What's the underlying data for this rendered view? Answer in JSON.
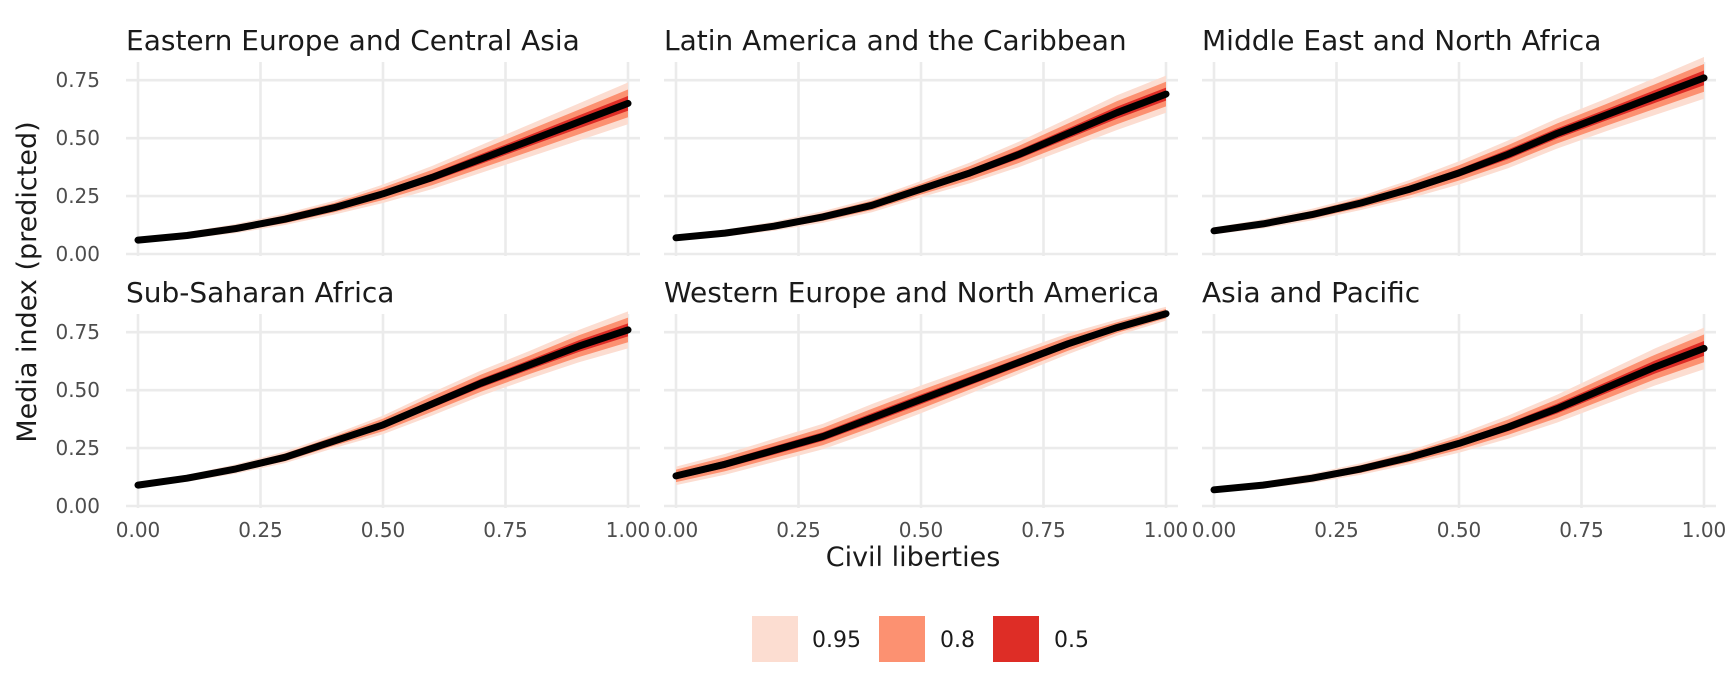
{
  "chart_data": {
    "type": "line",
    "xlabel": "Civil liberties",
    "ylabel": "Media index (predicted)",
    "xlim": [
      0,
      1
    ],
    "ylim": [
      0,
      0.82
    ],
    "x_ticks": [
      "0.00",
      "0.25",
      "0.50",
      "0.75",
      "1.00"
    ],
    "y_ticks": [
      "0.00",
      "0.25",
      "0.50",
      "0.75"
    ],
    "grid": true,
    "x": [
      0.0,
      0.1,
      0.2,
      0.3,
      0.4,
      0.5,
      0.6,
      0.7,
      0.8,
      0.9,
      1.0
    ],
    "interval_levels": [
      {
        "level": "0.95",
        "color": "#fcddd1"
      },
      {
        "level": "0.8",
        "color": "#fc9171"
      },
      {
        "level": "0.5",
        "color": "#de2d26"
      }
    ],
    "line_color": "#000000",
    "legend_position": "bottom",
    "panels": [
      {
        "title": "Eastern Europe and Central Asia",
        "median": [
          0.06,
          0.08,
          0.11,
          0.15,
          0.2,
          0.26,
          0.33,
          0.41,
          0.49,
          0.57,
          0.65
        ],
        "w95": [
          0.01,
          0.015,
          0.02,
          0.025,
          0.03,
          0.04,
          0.05,
          0.06,
          0.07,
          0.08,
          0.09
        ],
        "w80": [
          0.007,
          0.01,
          0.013,
          0.017,
          0.02,
          0.027,
          0.033,
          0.04,
          0.047,
          0.053,
          0.06
        ],
        "w50": [
          0.004,
          0.005,
          0.007,
          0.009,
          0.011,
          0.014,
          0.017,
          0.021,
          0.024,
          0.028,
          0.032
        ]
      },
      {
        "title": "Latin America and the Caribbean",
        "median": [
          0.07,
          0.09,
          0.12,
          0.16,
          0.21,
          0.28,
          0.35,
          0.43,
          0.52,
          0.61,
          0.69
        ],
        "w95": [
          0.01,
          0.015,
          0.02,
          0.025,
          0.03,
          0.035,
          0.045,
          0.055,
          0.065,
          0.075,
          0.08
        ],
        "w80": [
          0.007,
          0.01,
          0.013,
          0.017,
          0.02,
          0.023,
          0.03,
          0.037,
          0.043,
          0.05,
          0.053
        ],
        "w50": [
          0.004,
          0.005,
          0.007,
          0.009,
          0.011,
          0.012,
          0.016,
          0.019,
          0.022,
          0.026,
          0.028
        ]
      },
      {
        "title": "Middle East and North Africa",
        "median": [
          0.1,
          0.13,
          0.17,
          0.22,
          0.28,
          0.35,
          0.43,
          0.52,
          0.6,
          0.68,
          0.76
        ],
        "w95": [
          0.015,
          0.02,
          0.025,
          0.03,
          0.04,
          0.05,
          0.06,
          0.065,
          0.07,
          0.08,
          0.09
        ],
        "w80": [
          0.01,
          0.013,
          0.017,
          0.02,
          0.027,
          0.033,
          0.04,
          0.043,
          0.047,
          0.053,
          0.06
        ],
        "w50": [
          0.005,
          0.007,
          0.009,
          0.011,
          0.014,
          0.017,
          0.021,
          0.022,
          0.024,
          0.028,
          0.032
        ]
      },
      {
        "title": "Sub-Saharan Africa",
        "median": [
          0.09,
          0.12,
          0.16,
          0.21,
          0.28,
          0.35,
          0.44,
          0.53,
          0.61,
          0.69,
          0.76
        ],
        "w95": [
          0.01,
          0.015,
          0.02,
          0.025,
          0.03,
          0.04,
          0.05,
          0.055,
          0.06,
          0.07,
          0.08
        ],
        "w80": [
          0.007,
          0.01,
          0.013,
          0.017,
          0.02,
          0.027,
          0.033,
          0.037,
          0.04,
          0.047,
          0.053
        ],
        "w50": [
          0.004,
          0.005,
          0.007,
          0.009,
          0.011,
          0.014,
          0.017,
          0.019,
          0.021,
          0.025,
          0.028
        ]
      },
      {
        "title": "Western Europe and North America",
        "median": [
          0.13,
          0.18,
          0.24,
          0.3,
          0.38,
          0.46,
          0.54,
          0.62,
          0.7,
          0.77,
          0.83
        ],
        "w95": [
          0.04,
          0.045,
          0.05,
          0.055,
          0.06,
          0.06,
          0.055,
          0.05,
          0.045,
          0.035,
          0.03
        ],
        "w80": [
          0.027,
          0.03,
          0.033,
          0.037,
          0.04,
          0.04,
          0.037,
          0.033,
          0.03,
          0.023,
          0.02
        ],
        "w50": [
          0.014,
          0.016,
          0.018,
          0.019,
          0.021,
          0.021,
          0.019,
          0.018,
          0.016,
          0.012,
          0.011
        ]
      },
      {
        "title": "Asia and Pacific",
        "median": [
          0.07,
          0.09,
          0.12,
          0.16,
          0.21,
          0.27,
          0.34,
          0.42,
          0.51,
          0.6,
          0.68
        ],
        "w95": [
          0.01,
          0.015,
          0.02,
          0.025,
          0.03,
          0.04,
          0.05,
          0.06,
          0.07,
          0.08,
          0.09
        ],
        "w80": [
          0.007,
          0.01,
          0.013,
          0.017,
          0.02,
          0.027,
          0.033,
          0.04,
          0.047,
          0.053,
          0.06
        ],
        "w50": [
          0.004,
          0.005,
          0.007,
          0.009,
          0.011,
          0.014,
          0.017,
          0.021,
          0.024,
          0.028,
          0.032
        ]
      }
    ]
  }
}
